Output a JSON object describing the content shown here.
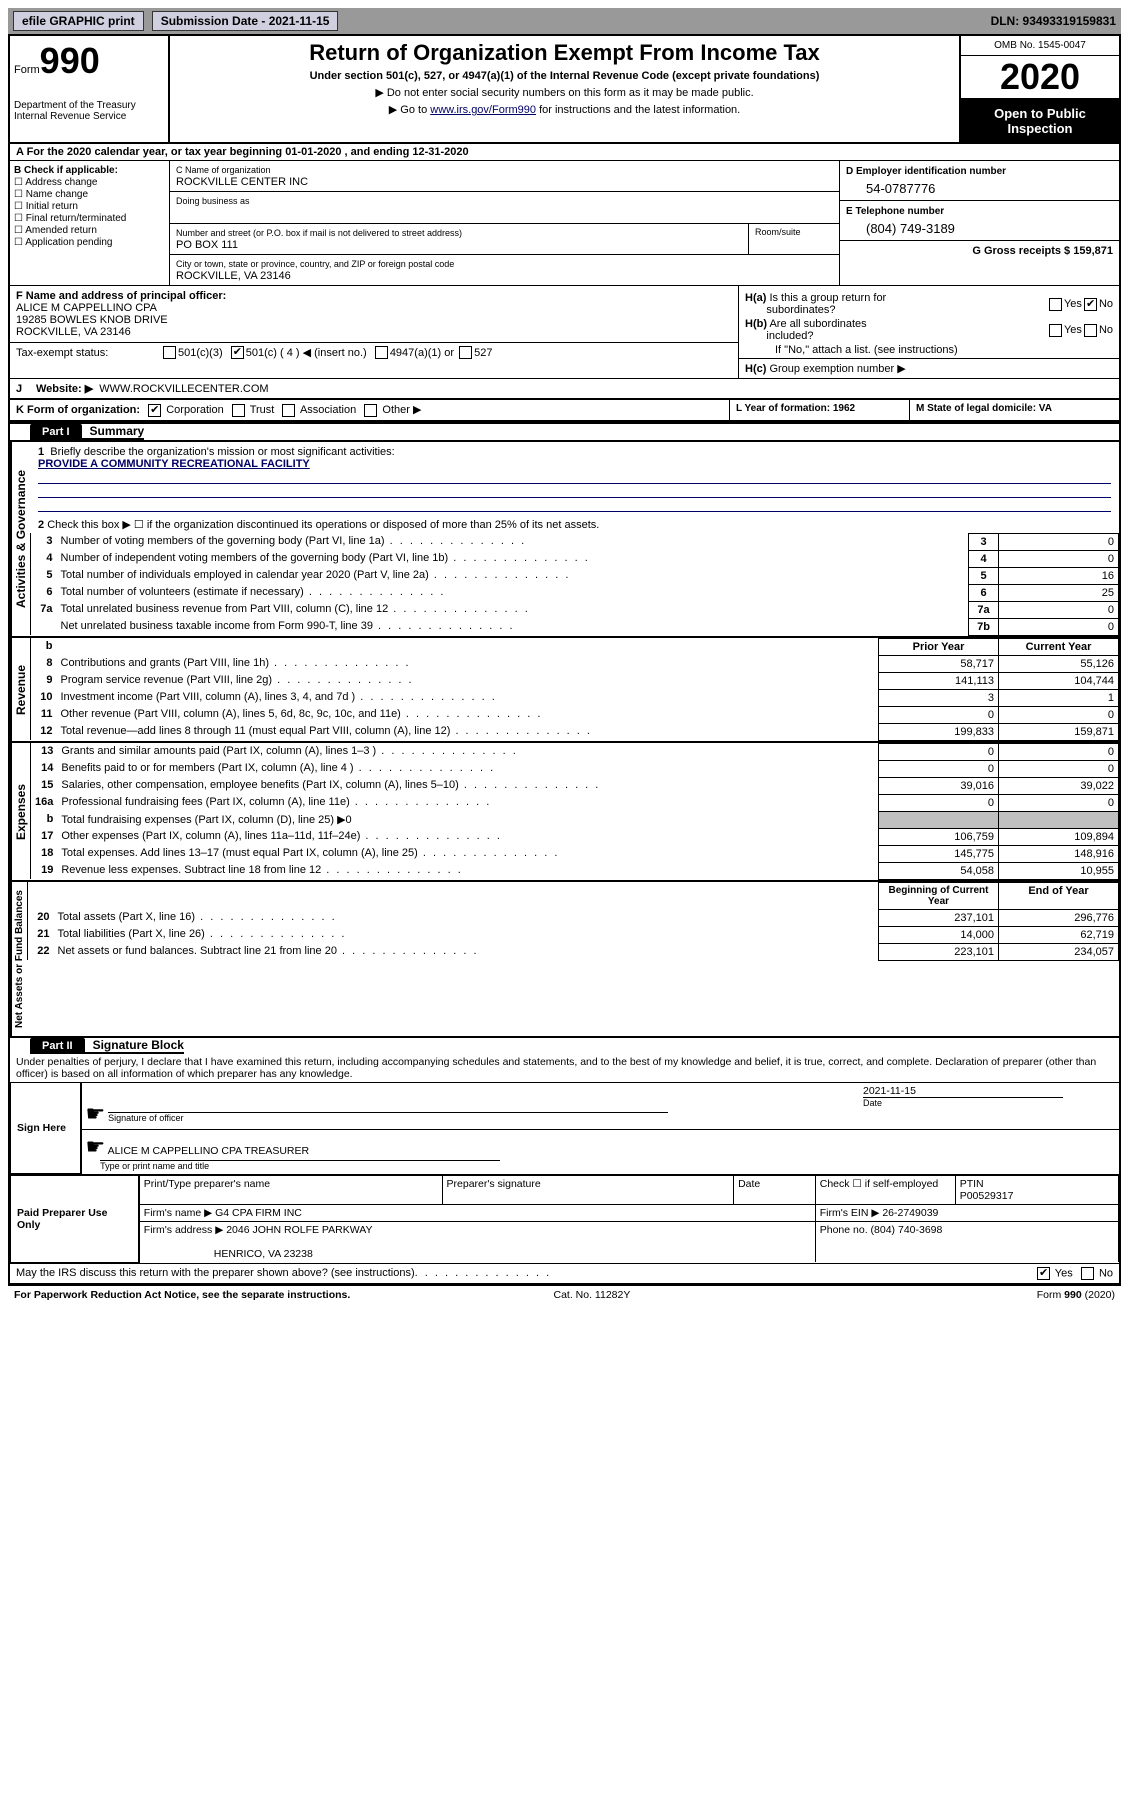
{
  "topbar": {
    "efile_label": "efile GRAPHIC print",
    "sub_label": "Submission Date - 2021-11-15",
    "dln": "DLN: 93493319159831"
  },
  "header": {
    "form_word": "Form",
    "form_num": "990",
    "dept": "Department of the Treasury\nInternal Revenue Service",
    "title": "Return of Organization Exempt From Income Tax",
    "subtitle": "Under section 501(c), 527, or 4947(a)(1) of the Internal Revenue Code (except private foundations)",
    "instr1": "▶ Do not enter social security numbers on this form as it may be made public.",
    "instr2": "▶ Go to ",
    "instr2_link": "www.irs.gov/Form990",
    "instr2_tail": " for instructions and the latest information.",
    "omb": "OMB No. 1545-0047",
    "year": "2020",
    "open_pub": "Open to Public Inspection"
  },
  "row_a": "A For the 2020 calendar year, or tax year beginning 01-01-2020   , and ending 12-31-2020",
  "col_b": {
    "title": "B Check if applicable:",
    "items": [
      "Address change",
      "Name change",
      "Initial return",
      "Final return/terminated",
      "Amended return",
      "Application pending"
    ]
  },
  "box_c": {
    "label": "C Name of organization",
    "name": "ROCKVILLE CENTER INC",
    "dba_label": "Doing business as",
    "addr_label": "Number and street (or P.O. box if mail is not delivered to street address)",
    "addr": "PO BOX 111",
    "room_label": "Room/suite",
    "city_label": "City or town, state or province, country, and ZIP or foreign postal code",
    "city": "ROCKVILLE, VA  23146"
  },
  "box_d": {
    "label": "D Employer identification number",
    "val": "54-0787776",
    "e_label": "E Telephone number",
    "e_val": "(804) 749-3189",
    "g_label": "G Gross receipts $ 159,871"
  },
  "box_f": {
    "label": "F  Name and address of principal officer:",
    "name": "ALICE M CAPPELLINO CPA",
    "addr1": "19285 BOWLES KNOB DRIVE",
    "addr2": "ROCKVILLE, VA  23146"
  },
  "box_h": {
    "ha_label": "H(a)  Is this a group return for subordinates?",
    "hb_label": "H(b)  Are all subordinates included?",
    "hb_note": "If \"No,\" attach a list. (see instructions)",
    "hc_label": "H(c)  Group exemption number ▶",
    "yes": "Yes",
    "no": "No"
  },
  "tax_status": {
    "label": "Tax-exempt status:",
    "o1": "501(c)(3)",
    "o2": "501(c) ( 4 ) ◀ (insert no.)",
    "o3": "4947(a)(1) or",
    "o4": "527"
  },
  "row_j": {
    "label": "J",
    "text": "Website: ▶",
    "val": "WWW.ROCKVILLECENTER.COM"
  },
  "row_k": {
    "label": "K Form of organization:",
    "opts": [
      "Corporation",
      "Trust",
      "Association",
      "Other ▶"
    ],
    "l_label": "L Year of formation: 1962",
    "m_label": "M State of legal domicile: VA"
  },
  "part1": {
    "tab": "Part I",
    "title": "Summary"
  },
  "summary": {
    "q1_label": "1",
    "q1": "Briefly describe the organization's mission or most significant activities:",
    "mission": "PROVIDE A COMMUNITY RECREATIONAL FACILITY",
    "q2_label": "2",
    "q2": "Check this box ▶ ☐  if the organization discontinued its operations or disposed of more than 25% of its net assets.",
    "lines": [
      {
        "n": "3",
        "d": "Number of voting members of the governing body (Part VI, line 1a)",
        "box": "3",
        "v": "0"
      },
      {
        "n": "4",
        "d": "Number of independent voting members of the governing body (Part VI, line 1b)",
        "box": "4",
        "v": "0"
      },
      {
        "n": "5",
        "d": "Total number of individuals employed in calendar year 2020 (Part V, line 2a)",
        "box": "5",
        "v": "16"
      },
      {
        "n": "6",
        "d": "Total number of volunteers (estimate if necessary)",
        "box": "6",
        "v": "25"
      },
      {
        "n": "7a",
        "d": "Total unrelated business revenue from Part VIII, column (C), line 12",
        "box": "7a",
        "v": "0"
      },
      {
        "n": "",
        "d": "Net unrelated business taxable income from Form 990-T, line 39",
        "box": "7b",
        "v": "0"
      }
    ]
  },
  "revenue": {
    "side": "Activities & Governance",
    "side_rev": "Revenue",
    "side_exp": "Expenses",
    "side_net": "Net Assets or Fund Balances",
    "hdr_prior": "Prior Year",
    "hdr_curr": "Current Year",
    "hdr_begin": "Beginning of Current Year",
    "hdr_end": "End of Year",
    "b_label": "b",
    "rows_rev": [
      {
        "n": "8",
        "d": "Contributions and grants (Part VIII, line 1h)",
        "p": "58,717",
        "c": "55,126"
      },
      {
        "n": "9",
        "d": "Program service revenue (Part VIII, line 2g)",
        "p": "141,113",
        "c": "104,744"
      },
      {
        "n": "10",
        "d": "Investment income (Part VIII, column (A), lines 3, 4, and 7d )",
        "p": "3",
        "c": "1"
      },
      {
        "n": "11",
        "d": "Other revenue (Part VIII, column (A), lines 5, 6d, 8c, 9c, 10c, and 11e)",
        "p": "0",
        "c": "0"
      },
      {
        "n": "12",
        "d": "Total revenue—add lines 8 through 11 (must equal Part VIII, column (A), line 12)",
        "p": "199,833",
        "c": "159,871"
      }
    ],
    "rows_exp": [
      {
        "n": "13",
        "d": "Grants and similar amounts paid (Part IX, column (A), lines 1–3 )",
        "p": "0",
        "c": "0"
      },
      {
        "n": "14",
        "d": "Benefits paid to or for members (Part IX, column (A), line 4 )",
        "p": "0",
        "c": "0"
      },
      {
        "n": "15",
        "d": "Salaries, other compensation, employee benefits (Part IX, column (A), lines 5–10)",
        "p": "39,016",
        "c": "39,022"
      },
      {
        "n": "16a",
        "d": "Professional fundraising fees (Part IX, column (A), line 11e)",
        "p": "0",
        "c": "0"
      },
      {
        "n": "b",
        "d": "Total fundraising expenses (Part IX, column (D), line 25) ▶0",
        "p": "",
        "c": "",
        "shade": true
      },
      {
        "n": "17",
        "d": "Other expenses (Part IX, column (A), lines 11a–11d, 11f–24e)",
        "p": "106,759",
        "c": "109,894"
      },
      {
        "n": "18",
        "d": "Total expenses. Add lines 13–17 (must equal Part IX, column (A), line 25)",
        "p": "145,775",
        "c": "148,916"
      },
      {
        "n": "19",
        "d": "Revenue less expenses. Subtract line 18 from line 12",
        "p": "54,058",
        "c": "10,955"
      }
    ],
    "rows_net": [
      {
        "n": "20",
        "d": "Total assets (Part X, line 16)",
        "p": "237,101",
        "c": "296,776"
      },
      {
        "n": "21",
        "d": "Total liabilities (Part X, line 26)",
        "p": "14,000",
        "c": "62,719"
      },
      {
        "n": "22",
        "d": "Net assets or fund balances. Subtract line 21 from line 20",
        "p": "223,101",
        "c": "234,057"
      }
    ]
  },
  "part2": {
    "tab": "Part II",
    "title": "Signature Block"
  },
  "sig": {
    "decl": "Under penalties of perjury, I declare that I have examined this return, including accompanying schedules and statements, and to the best of my knowledge and belief, it is true, correct, and complete. Declaration of preparer (other than officer) is based on all information of which preparer has any knowledge.",
    "sign_here": "Sign Here",
    "sig_officer": "Signature of officer",
    "date": "Date",
    "sig_date": "2021-11-15",
    "typed": "ALICE M CAPPELLINO CPA  TREASURER",
    "typed_label": "Type or print name and title",
    "paid": "Paid Preparer Use Only",
    "prep_name_h": "Print/Type preparer's name",
    "prep_sig_h": "Preparer's signature",
    "date_h": "Date",
    "chk_self": "Check ☐ if self-employed",
    "ptin_h": "PTIN",
    "ptin": "P00529317",
    "firm_name_l": "Firm's name    ▶",
    "firm_name": "G4 CPA FIRM INC",
    "firm_ein_l": "Firm's EIN ▶",
    "firm_ein": "26-2749039",
    "firm_addr_l": "Firm's address ▶",
    "firm_addr1": "2046 JOHN ROLFE PARKWAY",
    "firm_addr2": "HENRICO, VA  23238",
    "phone_l": "Phone no.",
    "phone": "(804) 740-3698",
    "may_irs": "May the IRS discuss this return with the preparer shown above? (see instructions)",
    "yes": "Yes",
    "no": "No"
  },
  "footer": {
    "left": "For Paperwork Reduction Act Notice, see the separate instructions.",
    "mid": "Cat. No. 11282Y",
    "right": "Form 990 (2020)"
  }
}
